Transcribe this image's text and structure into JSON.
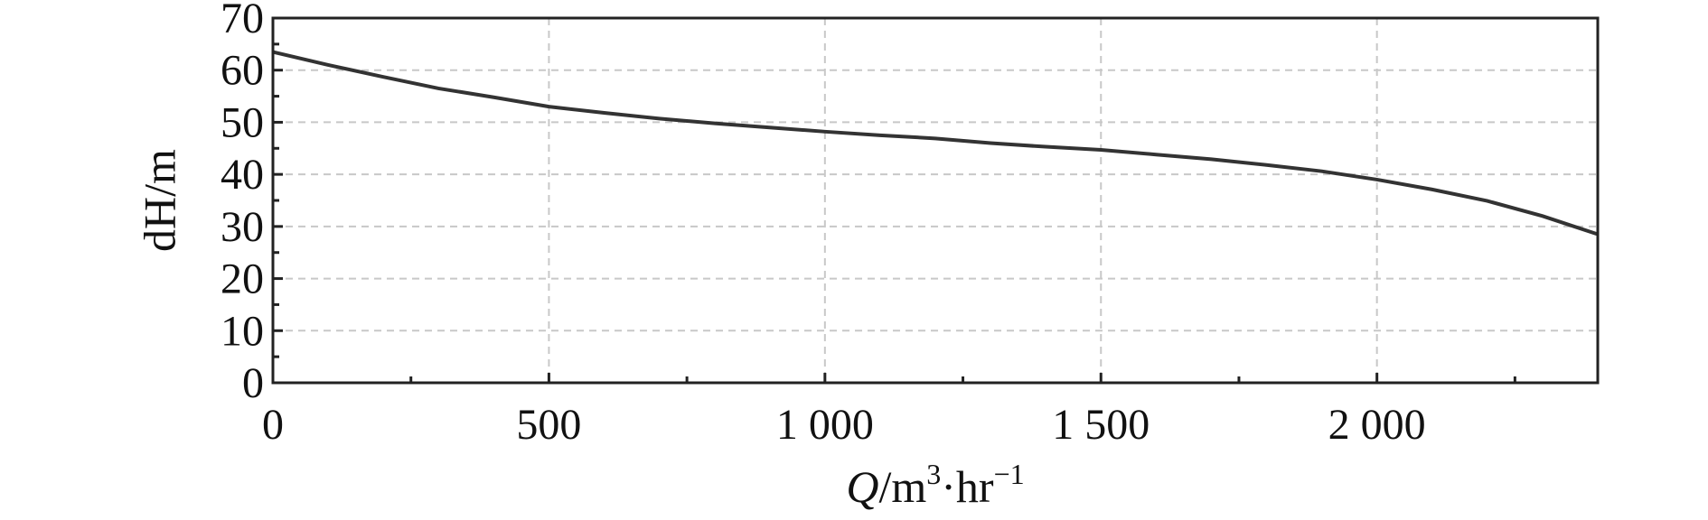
{
  "chart_data": {
    "type": "line",
    "title": "",
    "xlabel": {
      "var": "Q",
      "unit": "/m",
      "sup1": "3",
      "mid": "·hr",
      "sup2": "−1"
    },
    "ylabel": "dH/m",
    "xlim": [
      0,
      2400
    ],
    "ylim": [
      0,
      70
    ],
    "x_ticks": [
      0,
      500,
      1000,
      1500,
      2000
    ],
    "x_tick_labels": [
      "0",
      "500",
      "1 000",
      "1 500",
      "2 000"
    ],
    "x_minor_ticks": [
      250,
      750,
      1250,
      1750,
      2250
    ],
    "y_ticks": [
      0,
      10,
      20,
      30,
      40,
      50,
      60,
      70
    ],
    "y_tick_labels": [
      "0",
      "10",
      "20",
      "30",
      "40",
      "50",
      "60",
      "70"
    ],
    "y_minor_ticks": [
      5,
      15,
      25,
      35,
      45,
      55,
      65
    ],
    "grid": true,
    "series": [
      {
        "x": [
          0,
          100,
          200,
          300,
          400,
          500,
          600,
          700,
          800,
          900,
          1000,
          1100,
          1200,
          1300,
          1400,
          1500,
          1600,
          1700,
          1800,
          1900,
          2000,
          2100,
          2200,
          2300,
          2400
        ],
        "y": [
          63.5,
          61.0,
          58.7,
          56.5,
          54.8,
          53.0,
          51.8,
          50.7,
          49.8,
          49.0,
          48.2,
          47.5,
          46.9,
          46.0,
          45.3,
          44.7,
          43.8,
          42.9,
          41.8,
          40.6,
          39.0,
          37.1,
          34.9,
          32.0,
          28.5
        ]
      }
    ]
  }
}
